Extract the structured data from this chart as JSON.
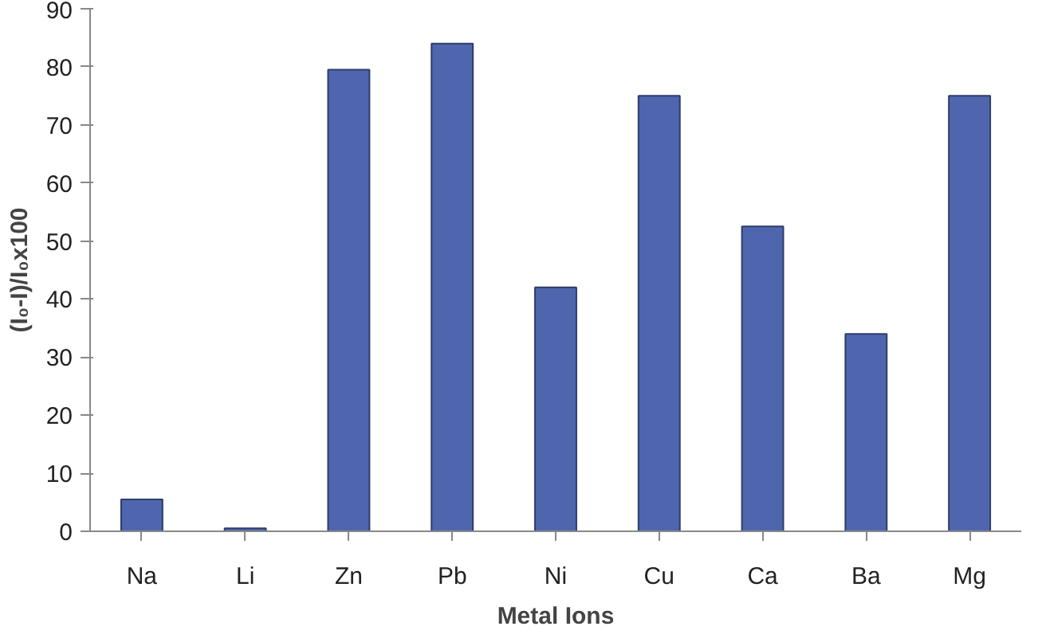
{
  "chart_data": {
    "type": "bar",
    "xlabel": "Metal Ions",
    "ylabel": "(I₀-I)/I₀x100",
    "categories": [
      "Na",
      "Li",
      "Zn",
      "Pb",
      "Ni",
      "Cu",
      "Ca",
      "Ba",
      "Mg"
    ],
    "values": [
      5.5,
      0.5,
      79.5,
      84,
      42,
      75,
      52.5,
      34,
      75
    ],
    "color": "#4f66ae",
    "ylim": [
      0,
      90
    ],
    "yticks": [
      0,
      10,
      20,
      30,
      40,
      50,
      60,
      70,
      80,
      90
    ],
    "grid": false
  }
}
